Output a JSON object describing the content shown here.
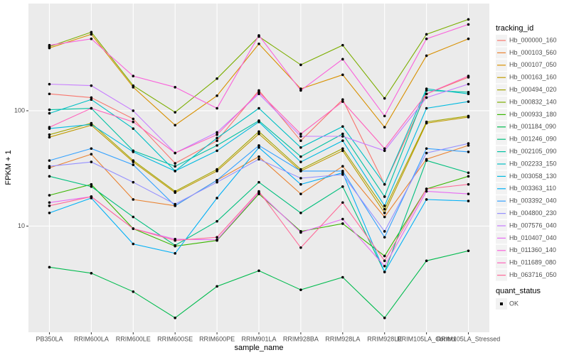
{
  "chart_data": {
    "type": "line",
    "log_scale": true,
    "grid": true,
    "y_label": "FPKM + 1",
    "x_label": "sample_name",
    "legend_title": "tracking_id",
    "legend_position": "right",
    "point_legend": {
      "title": "quant_status",
      "labels": [
        "OK"
      ],
      "color": "#000000"
    },
    "categories": [
      "PB350LA",
      "RRIM600LA",
      "RRIM600LE",
      "RRIM600SE",
      "RRIM600PE",
      "RRIM901LA",
      "RRIM928BA",
      "RRIM928LA",
      "RRIM928LE",
      "RRIM105LA_Control",
      "RRIM105LA_Stressed"
    ],
    "ylim": [
      1.2,
      850
    ],
    "yticks": [
      10,
      100
    ],
    "series": [
      {
        "name": "Hb_000000_160",
        "color": "#F8766D",
        "values": [
          140,
          130,
          85,
          35,
          55,
          150,
          55,
          125,
          23,
          140,
          195
        ]
      },
      {
        "name": "Hb_000103_560",
        "color": "#EA8331",
        "values": [
          32,
          42,
          17,
          15,
          25,
          40,
          19,
          33,
          12,
          38,
          50
        ]
      },
      {
        "name": "Hb_000107_050",
        "color": "#D89000",
        "values": [
          350,
          460,
          160,
          75,
          135,
          380,
          155,
          205,
          72,
          300,
          420
        ]
      },
      {
        "name": "Hb_000163_160",
        "color": "#C09B00",
        "values": [
          59,
          75,
          36,
          19.5,
          30,
          63,
          30,
          45,
          13,
          78,
          88
        ]
      },
      {
        "name": "Hb_000494_020",
        "color": "#A3A500",
        "values": [
          62,
          78,
          37,
          20,
          31,
          66,
          31,
          47,
          14,
          80,
          90
        ]
      },
      {
        "name": "Hb_000832_140",
        "color": "#7CAE00",
        "values": [
          360,
          480,
          165,
          97,
          190,
          440,
          250,
          370,
          128,
          460,
          620
        ]
      },
      {
        "name": "Hb_000933_180",
        "color": "#39B600",
        "values": [
          18.5,
          23,
          9.5,
          6.7,
          7.5,
          19,
          9,
          10.5,
          5.5,
          21,
          27
        ]
      },
      {
        "name": "Hb_001184_090",
        "color": "#00BB4E",
        "values": [
          4.4,
          3.9,
          2.7,
          1.6,
          3.0,
          4.1,
          2.8,
          3.6,
          1.6,
          5.0,
          6.1
        ]
      },
      {
        "name": "Hb_001246_090",
        "color": "#00BF7D",
        "values": [
          27,
          22,
          12,
          6.8,
          11,
          24,
          13,
          22,
          4,
          37,
          29
        ]
      },
      {
        "name": "Hb_002105_090",
        "color": "#00C1A3",
        "values": [
          102,
          105,
          45,
          33,
          50,
          82,
          40,
          63,
          18,
          150,
          145
        ]
      },
      {
        "name": "Hb_002233_150",
        "color": "#00BFC4",
        "values": [
          95,
          125,
          70,
          30,
          58,
          105,
          48,
          73,
          23,
          155,
          140
        ]
      },
      {
        "name": "Hb_003058_130",
        "color": "#00BAE0",
        "values": [
          70,
          76,
          44,
          30,
          45,
          80,
          36,
          55,
          15,
          105,
          120
        ]
      },
      {
        "name": "Hb_003363_110",
        "color": "#00B0F6",
        "values": [
          13,
          17.5,
          7,
          5.8,
          17.5,
          48,
          23,
          29,
          4,
          17,
          16.5
        ]
      },
      {
        "name": "Hb_003392_040",
        "color": "#35A2FF",
        "values": [
          37,
          47,
          34,
          15,
          25,
          50,
          30,
          30,
          8,
          47,
          44
        ]
      },
      {
        "name": "Hb_004800_230",
        "color": "#9590FF",
        "values": [
          33,
          36,
          24,
          15.5,
          24,
          38,
          26,
          28,
          9,
          43,
          52
        ]
      },
      {
        "name": "Hb_007576_040",
        "color": "#C77CFF",
        "values": [
          170,
          165,
          100,
          43,
          65,
          140,
          60,
          60,
          45,
          130,
          170
        ]
      },
      {
        "name": "Hb_010407_040",
        "color": "#E76BF3",
        "values": [
          16,
          18,
          9.5,
          7.7,
          7.6,
          19.5,
          8.8,
          11.5,
          4.5,
          20,
          19
        ]
      },
      {
        "name": "Hb_011360_140",
        "color": "#FA62DB",
        "values": [
          370,
          420,
          200,
          160,
          105,
          450,
          150,
          280,
          90,
          420,
          560
        ]
      },
      {
        "name": "Hb_011689_080",
        "color": "#FF62BC",
        "values": [
          72,
          105,
          80,
          43,
          62,
          145,
          63,
          120,
          47,
          140,
          200
        ]
      },
      {
        "name": "Hb_063716_050",
        "color": "#FF6A98",
        "values": [
          15,
          18,
          9.5,
          7.5,
          8,
          20,
          6.5,
          16,
          5,
          21,
          23
        ]
      }
    ]
  }
}
